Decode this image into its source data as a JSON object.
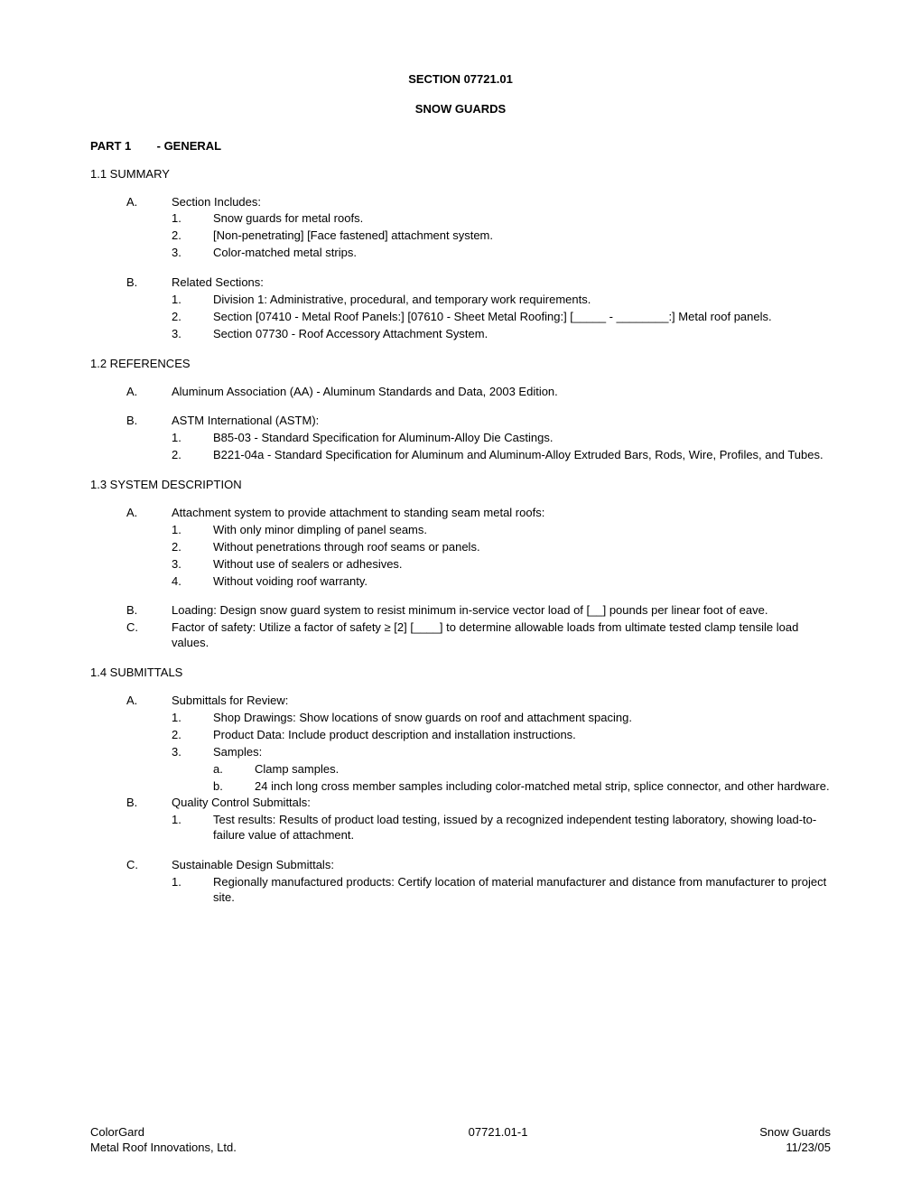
{
  "header": {
    "section_number": "SECTION 07721.01",
    "section_title": "SNOW GUARDS"
  },
  "part1": {
    "title_num": "PART 1",
    "title_text": "- GENERAL",
    "s1_1": {
      "heading": "1.1  SUMMARY",
      "A": {
        "label": "A.",
        "text": "Section Includes:",
        "items": [
          {
            "n": "1.",
            "t": "Snow guards for metal roofs."
          },
          {
            "n": "2.",
            "t": "[Non-penetrating] [Face fastened] attachment system."
          },
          {
            "n": "3.",
            "t": "Color-matched metal strips."
          }
        ]
      },
      "B": {
        "label": "B.",
        "text": "Related Sections:",
        "items": [
          {
            "n": "1.",
            "t": "Division 1: Administrative, procedural, and temporary work requirements."
          },
          {
            "n": "2.",
            "t": "Section [07410 - Metal Roof Panels:] [07610 - Sheet Metal Roofing:] [_____ - ________:] Metal roof panels."
          },
          {
            "n": "3.",
            "t": "Section 07730 - Roof Accessory Attachment System."
          }
        ]
      }
    },
    "s1_2": {
      "heading": "1.2  REFERENCES",
      "A": {
        "label": "A.",
        "text": "Aluminum Association (AA) - Aluminum Standards and Data, 2003 Edition."
      },
      "B": {
        "label": "B.",
        "text": "ASTM International (ASTM):",
        "items": [
          {
            "n": "1.",
            "t": "B85-03 - Standard Specification for Aluminum-Alloy Die Castings."
          },
          {
            "n": "2.",
            "t": "B221-04a - Standard Specification for Aluminum and Aluminum-Alloy Extruded Bars, Rods, Wire, Profiles, and Tubes."
          }
        ]
      }
    },
    "s1_3": {
      "heading": "1.3  SYSTEM DESCRIPTION",
      "A": {
        "label": "A.",
        "text": "Attachment system to provide attachment to standing seam metal roofs:",
        "items": [
          {
            "n": "1.",
            "t": "With only minor dimpling of panel seams."
          },
          {
            "n": "2.",
            "t": "Without penetrations through roof seams or panels."
          },
          {
            "n": "3.",
            "t": "Without use of sealers or adhesives."
          },
          {
            "n": "4.",
            "t": "Without voiding roof warranty."
          }
        ]
      },
      "B": {
        "label": "B.",
        "text": "Loading: Design snow guard system to resist minimum in-service vector load of [__] pounds per linear foot of eave."
      },
      "C": {
        "label": "C.",
        "text": "Factor of safety:  Utilize a factor of safety ≥ [2] [____] to determine allowable loads from ultimate tested clamp tensile load values."
      }
    },
    "s1_4": {
      "heading": "1.4  SUBMITTALS",
      "A": {
        "label": "A.",
        "text": "Submittals for Review:",
        "items": [
          {
            "n": "1.",
            "t": "Shop Drawings: Show locations of snow guards on roof and attachment spacing."
          },
          {
            "n": "2.",
            "t": "Product Data: Include product description and installation instructions."
          },
          {
            "n": "3.",
            "t": "Samples:",
            "sub": [
              {
                "n": "a.",
                "t": "Clamp samples."
              },
              {
                "n": "b.",
                "t": "24 inch long cross member samples including color-matched metal strip, splice connector, and other hardware."
              }
            ]
          }
        ]
      },
      "B": {
        "label": "B.",
        "text": "Quality Control Submittals:",
        "items": [
          {
            "n": "1.",
            "t": "Test results: Results of product load testing, issued by a recognized independent testing laboratory, showing load-to-failure value of attachment."
          }
        ]
      },
      "C": {
        "label": "C.",
        "text": "Sustainable Design Submittals:",
        "items": [
          {
            "n": "1.",
            "t": "Regionally manufactured products: Certify location of material manufacturer and distance from manufacturer to project site."
          }
        ]
      }
    }
  },
  "footer": {
    "left1": "ColorGard",
    "left2": "Metal Roof Innovations, Ltd.",
    "center": "07721.01-1",
    "right1": "Snow Guards",
    "right2": "11/23/05"
  }
}
